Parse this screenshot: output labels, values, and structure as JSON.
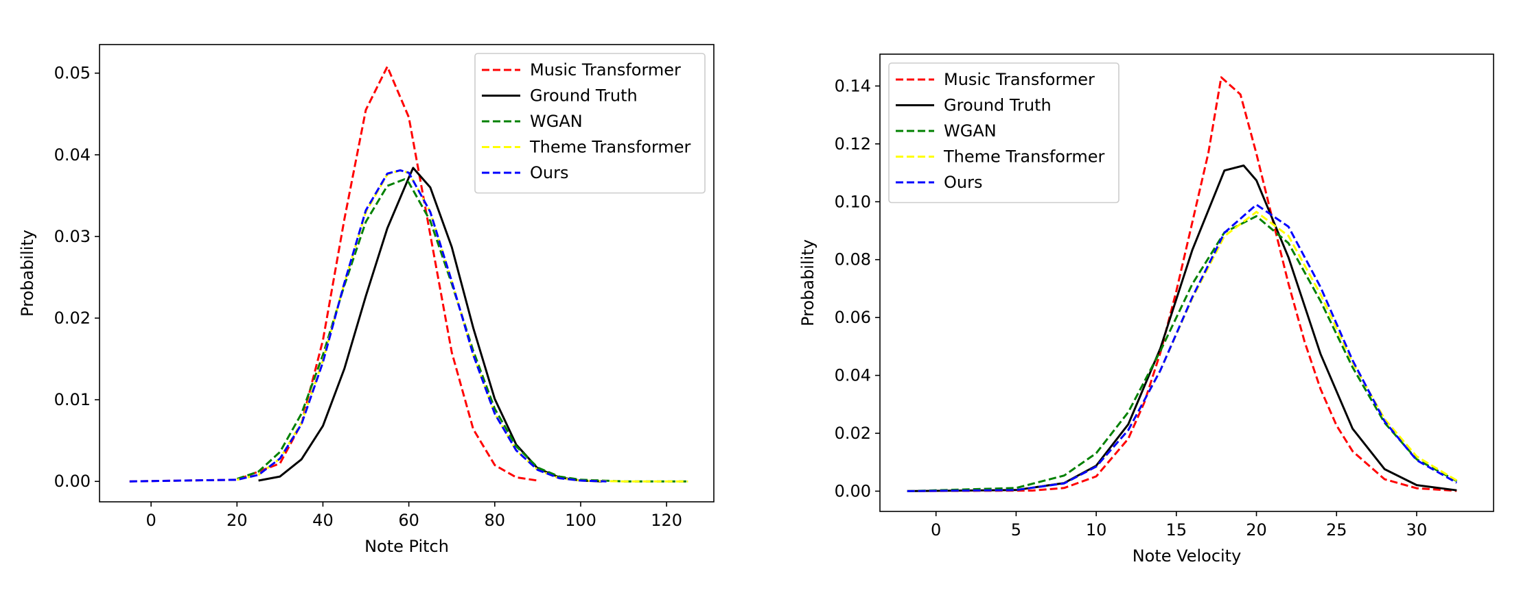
{
  "chart_data": [
    {
      "type": "line",
      "title": "",
      "xlabel": "Note Pitch",
      "ylabel": "Probability",
      "xlim": [
        -12,
        131
      ],
      "ylim": [
        -0.0025,
        0.0535
      ],
      "xticks": [
        0,
        20,
        40,
        60,
        80,
        100,
        120
      ],
      "yticks": [
        0.0,
        0.01,
        0.02,
        0.03,
        0.04,
        0.05
      ],
      "ytick_labels": [
        "0.00",
        "0.01",
        "0.02",
        "0.03",
        "0.04",
        "0.05"
      ],
      "grid": false,
      "legend_position": "upper right",
      "series": [
        {
          "name": "Music Transformer",
          "color": "#ff0000",
          "dash": "dashed",
          "x": [
            -5,
            20,
            30,
            35,
            40,
            45,
            50,
            55,
            60,
            65,
            70,
            75,
            80,
            85,
            90
          ],
          "y": [
            0.0,
            0.0002,
            0.0022,
            0.0071,
            0.0173,
            0.0321,
            0.0455,
            0.0508,
            0.0446,
            0.0302,
            0.0158,
            0.0064,
            0.002,
            0.0005,
            0.0001
          ]
        },
        {
          "name": "Ground Truth",
          "color": "#000000",
          "dash": "solid",
          "x": [
            25,
            30,
            35,
            40,
            45,
            50,
            55,
            60,
            61,
            65,
            70,
            75,
            80,
            85,
            90,
            95,
            100,
            105
          ],
          "y": [
            0.0001,
            0.0006,
            0.0027,
            0.0068,
            0.0138,
            0.0227,
            0.031,
            0.0372,
            0.0384,
            0.036,
            0.0287,
            0.0188,
            0.0101,
            0.0045,
            0.0016,
            0.0005,
            0.0001,
            0.0
          ]
        },
        {
          "name": "WGAN",
          "color": "#008000",
          "dash": "dashed",
          "x": [
            20,
            25,
            30,
            35,
            40,
            45,
            50,
            55,
            59,
            60,
            65,
            70,
            75,
            80,
            85,
            90,
            95,
            100,
            110,
            125
          ],
          "y": [
            0.0003,
            0.0012,
            0.0036,
            0.0083,
            0.0155,
            0.024,
            0.0318,
            0.0362,
            0.037,
            0.0366,
            0.0319,
            0.0242,
            0.016,
            0.0089,
            0.0043,
            0.0017,
            0.0006,
            0.0002,
            0.0,
            0.0
          ]
        },
        {
          "name": "Theme Transformer",
          "color": "#ffff00",
          "dash": "dashed",
          "x": [
            20,
            25,
            30,
            35,
            40,
            45,
            50,
            55,
            58,
            60,
            65,
            70,
            75,
            80,
            85,
            90,
            95,
            100,
            110,
            125
          ],
          "y": [
            0.0002,
            0.0008,
            0.0028,
            0.0072,
            0.0148,
            0.0243,
            0.033,
            0.0376,
            0.0381,
            0.0378,
            0.033,
            0.0245,
            0.0155,
            0.0083,
            0.0038,
            0.0014,
            0.0004,
            0.0001,
            0.0,
            0.0
          ]
        },
        {
          "name": "Ours",
          "color": "#0000ff",
          "dash": "dashed",
          "x": [
            -5,
            20,
            25,
            30,
            35,
            40,
            45,
            50,
            55,
            58,
            60,
            65,
            70,
            75,
            80,
            85,
            90,
            95,
            100,
            106
          ],
          "y": [
            0.0,
            0.0002,
            0.0008,
            0.0028,
            0.007,
            0.0146,
            0.0243,
            0.0332,
            0.0377,
            0.0381,
            0.0378,
            0.033,
            0.0245,
            0.0155,
            0.0083,
            0.0038,
            0.0014,
            0.0004,
            0.0001,
            0.0
          ]
        }
      ]
    },
    {
      "type": "line",
      "title": "",
      "xlabel": "Note Velocity",
      "ylabel": "Probability",
      "xlim": [
        -3.5,
        34.8
      ],
      "ylim": [
        -0.007,
        0.151
      ],
      "xticks": [
        0,
        5,
        10,
        15,
        20,
        25,
        30
      ],
      "yticks": [
        0.0,
        0.02,
        0.04,
        0.06,
        0.08,
        0.1,
        0.12,
        0.14
      ],
      "ytick_labels": [
        "0.00",
        "0.02",
        "0.04",
        "0.06",
        "0.08",
        "0.10",
        "0.12",
        "0.14"
      ],
      "grid": false,
      "legend_position": "upper left",
      "series": [
        {
          "name": "Music Transformer",
          "color": "#ff0000",
          "dash": "dashed",
          "x": [
            -1.8,
            6,
            8,
            10,
            12,
            13,
            14,
            15,
            16,
            17,
            17.8,
            19,
            20,
            21,
            22,
            23,
            24,
            25,
            26,
            28,
            30,
            32.5
          ],
          "y": [
            0.0,
            0.0002,
            0.0011,
            0.0051,
            0.0181,
            0.0306,
            0.0478,
            0.0691,
            0.093,
            0.1169,
            0.143,
            0.1371,
            0.1166,
            0.094,
            0.0717,
            0.0517,
            0.0353,
            0.0227,
            0.0138,
            0.0041,
            0.001,
            0.0001
          ]
        },
        {
          "name": "Ground Truth",
          "color": "#000000",
          "dash": "solid",
          "x": [
            -1.8,
            5,
            8,
            10,
            12,
            14,
            16,
            18,
            19.2,
            20,
            22,
            24,
            26,
            28,
            30,
            32.5
          ],
          "y": [
            0.0,
            0.0004,
            0.0028,
            0.0088,
            0.0231,
            0.0493,
            0.0834,
            0.1108,
            0.1125,
            0.1074,
            0.0808,
            0.0474,
            0.0216,
            0.0076,
            0.0021,
            0.0003
          ]
        },
        {
          "name": "WGAN",
          "color": "#008000",
          "dash": "dashed",
          "x": [
            -1.8,
            5,
            8,
            10,
            12,
            14,
            16,
            18,
            20,
            22,
            24,
            26,
            28,
            30,
            32.5
          ],
          "y": [
            0.0,
            0.0011,
            0.0054,
            0.0131,
            0.0273,
            0.0484,
            0.0716,
            0.0894,
            0.095,
            0.0857,
            0.0657,
            0.0428,
            0.0236,
            0.011,
            0.0035
          ]
        },
        {
          "name": "Theme Transformer",
          "color": "#ffff00",
          "dash": "dashed",
          "x": [
            -1.8,
            5,
            8,
            10,
            12,
            14,
            16,
            18,
            20,
            22,
            24,
            26,
            28,
            30,
            32.5
          ],
          "y": [
            0.0,
            0.0004,
            0.0027,
            0.0085,
            0.0211,
            0.0417,
            0.0667,
            0.0881,
            0.0965,
            0.0882,
            0.068,
            0.0445,
            0.0249,
            0.012,
            0.0037
          ]
        },
        {
          "name": "Ours",
          "color": "#0000ff",
          "dash": "dashed",
          "x": [
            -1.8,
            5,
            8,
            10,
            12,
            14,
            16,
            18,
            20,
            22,
            24,
            26,
            28,
            30,
            32.5
          ],
          "y": [
            0.0,
            0.0004,
            0.0027,
            0.0085,
            0.0211,
            0.0417,
            0.0671,
            0.0893,
            0.099,
            0.0914,
            0.0705,
            0.0452,
            0.0241,
            0.0107,
            0.0029
          ]
        }
      ]
    }
  ]
}
